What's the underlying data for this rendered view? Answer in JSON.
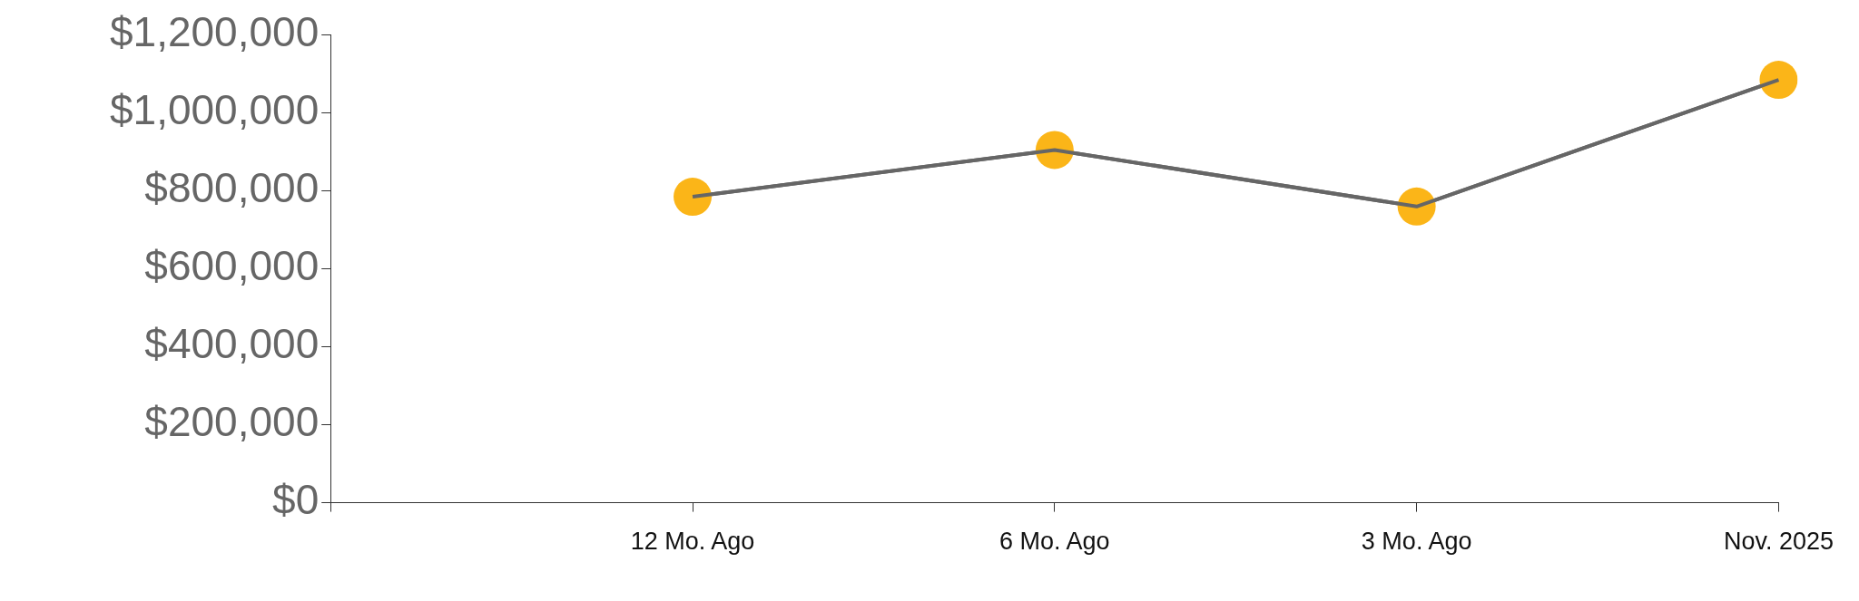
{
  "chart_data": {
    "type": "line",
    "categories": [
      null,
      "12 Mo. Ago",
      "6 Mo. Ago",
      "3 Mo. Ago",
      "Nov. 2025"
    ],
    "series": [
      {
        "color": "#666666",
        "colors": [
          "#fbb518",
          "#fbb518",
          "#fbb518",
          "#fbb518",
          "#fbb518"
        ],
        "values": [
          null,
          785000,
          905000,
          760000,
          1085000
        ]
      }
    ],
    "marker": "circle",
    "ylim": [
      0,
      1200000
    ],
    "yticks": [
      {
        "value": 0,
        "label": "$0"
      },
      {
        "value": 200000,
        "label": "$200,000"
      },
      {
        "value": 400000,
        "label": "$400,000"
      },
      {
        "value": 600000,
        "label": "$600,000"
      },
      {
        "value": 800000,
        "label": "$800,000"
      },
      {
        "value": 1000000,
        "label": "$1,000,000"
      },
      {
        "value": 1200000,
        "label": "$1,200,000"
      }
    ],
    "grid": false,
    "legend": false
  }
}
